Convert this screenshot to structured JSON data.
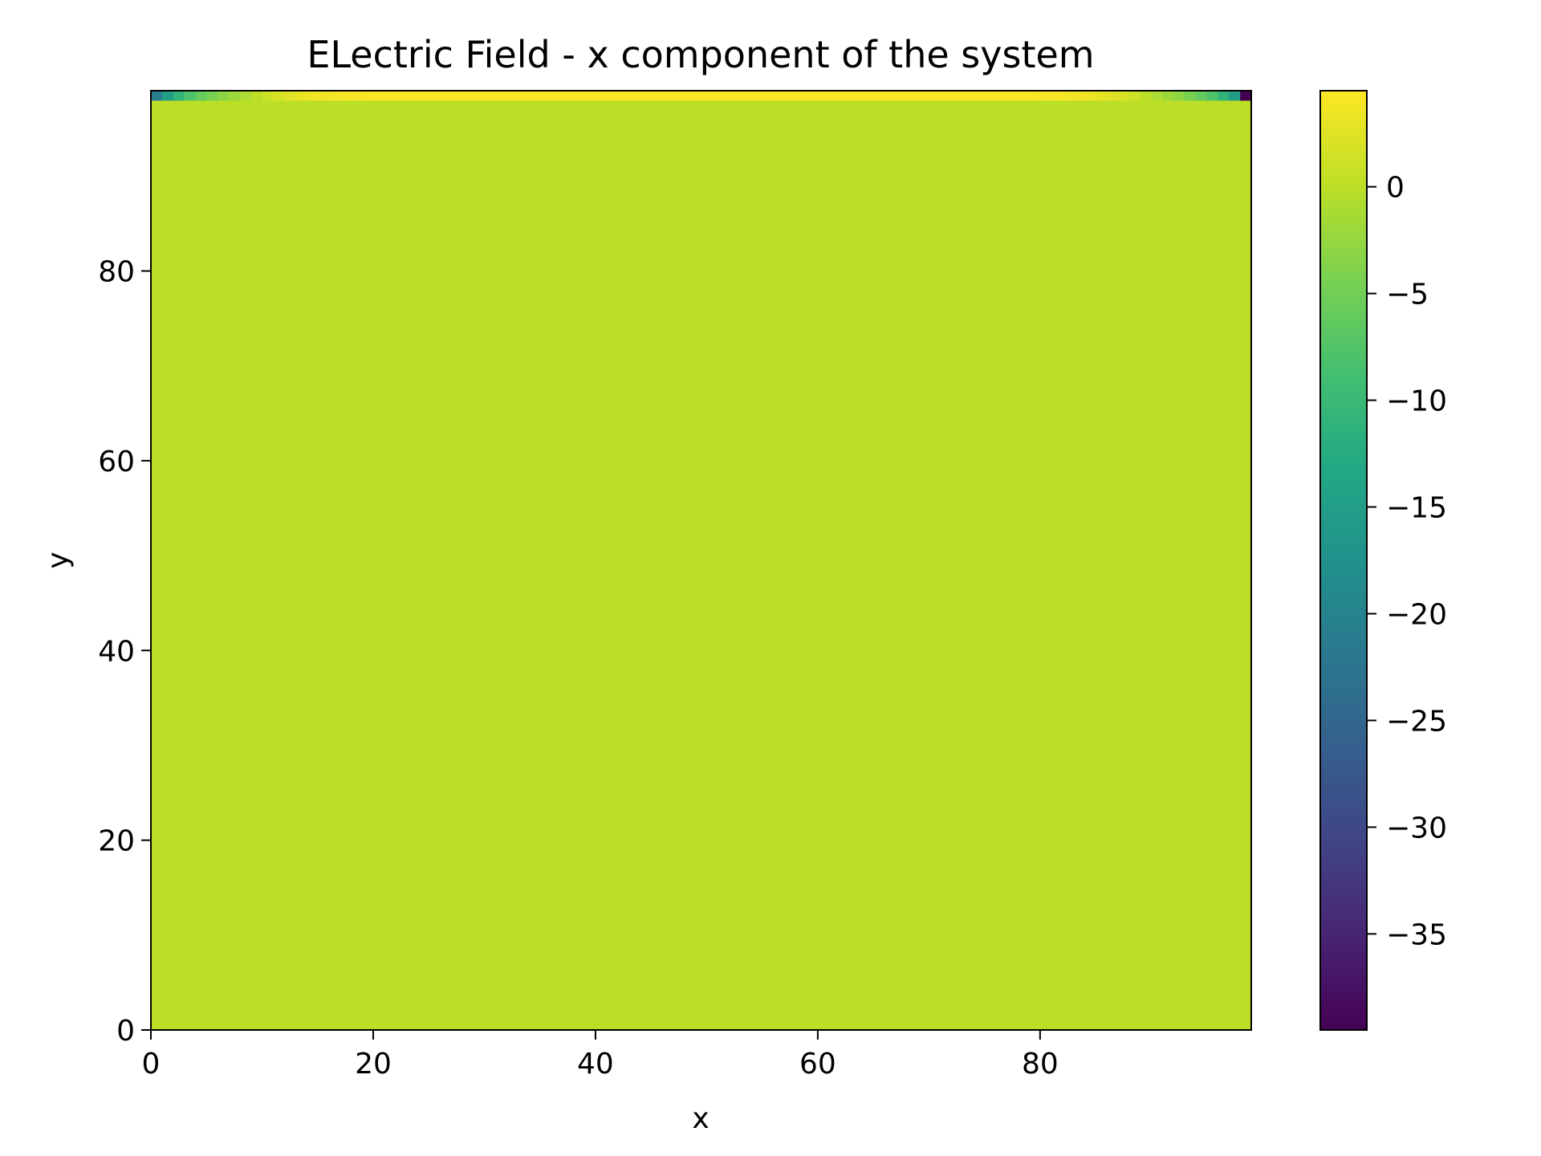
{
  "chart_data": {
    "type": "heatmap",
    "title": "ELectric Field - x component of the system",
    "xlabel": "x",
    "ylabel": "y",
    "xlim": [
      0,
      99
    ],
    "ylim": [
      0,
      99
    ],
    "xticks": [
      0,
      20,
      40,
      60,
      80
    ],
    "yticks": [
      0,
      20,
      40,
      60,
      80
    ],
    "xtick_labels": [
      "0",
      "20",
      "40",
      "60",
      "80"
    ],
    "ytick_labels": [
      "0",
      "20",
      "40",
      "60",
      "80"
    ],
    "grid": false,
    "colormap": "viridis",
    "colorbar": {
      "range": [
        -39.5,
        4.5
      ],
      "ticks": [
        0,
        -5,
        -10,
        -15,
        -20,
        -25,
        -30,
        -35
      ],
      "tick_labels": [
        "0",
        "−5",
        "−10",
        "−15",
        "−20",
        "−25",
        "−30",
        "−35"
      ]
    },
    "grid_size": [
      99,
      99
    ],
    "background_value": 0.0,
    "top_row_y": 98,
    "top_row_values": [
      -21.0,
      -15.0,
      -11.0,
      -8.0,
      -6.0,
      -4.5,
      -3.0,
      -2.0,
      -1.0,
      0.0,
      1.0,
      1.8,
      2.5,
      3.0,
      3.4,
      3.7,
      3.9,
      4.0,
      4.1,
      4.2
    ],
    "top_row_right_values": [
      4.2,
      4.1,
      4.0,
      3.9,
      3.7,
      3.4,
      3.0,
      2.5,
      1.8,
      1.0,
      0.0,
      -1.0,
      -2.0,
      -3.0,
      -4.5,
      -6.0,
      -8.0,
      -11.0,
      -15.0,
      -39.5
    ],
    "top_row_center_value": 4.3
  }
}
